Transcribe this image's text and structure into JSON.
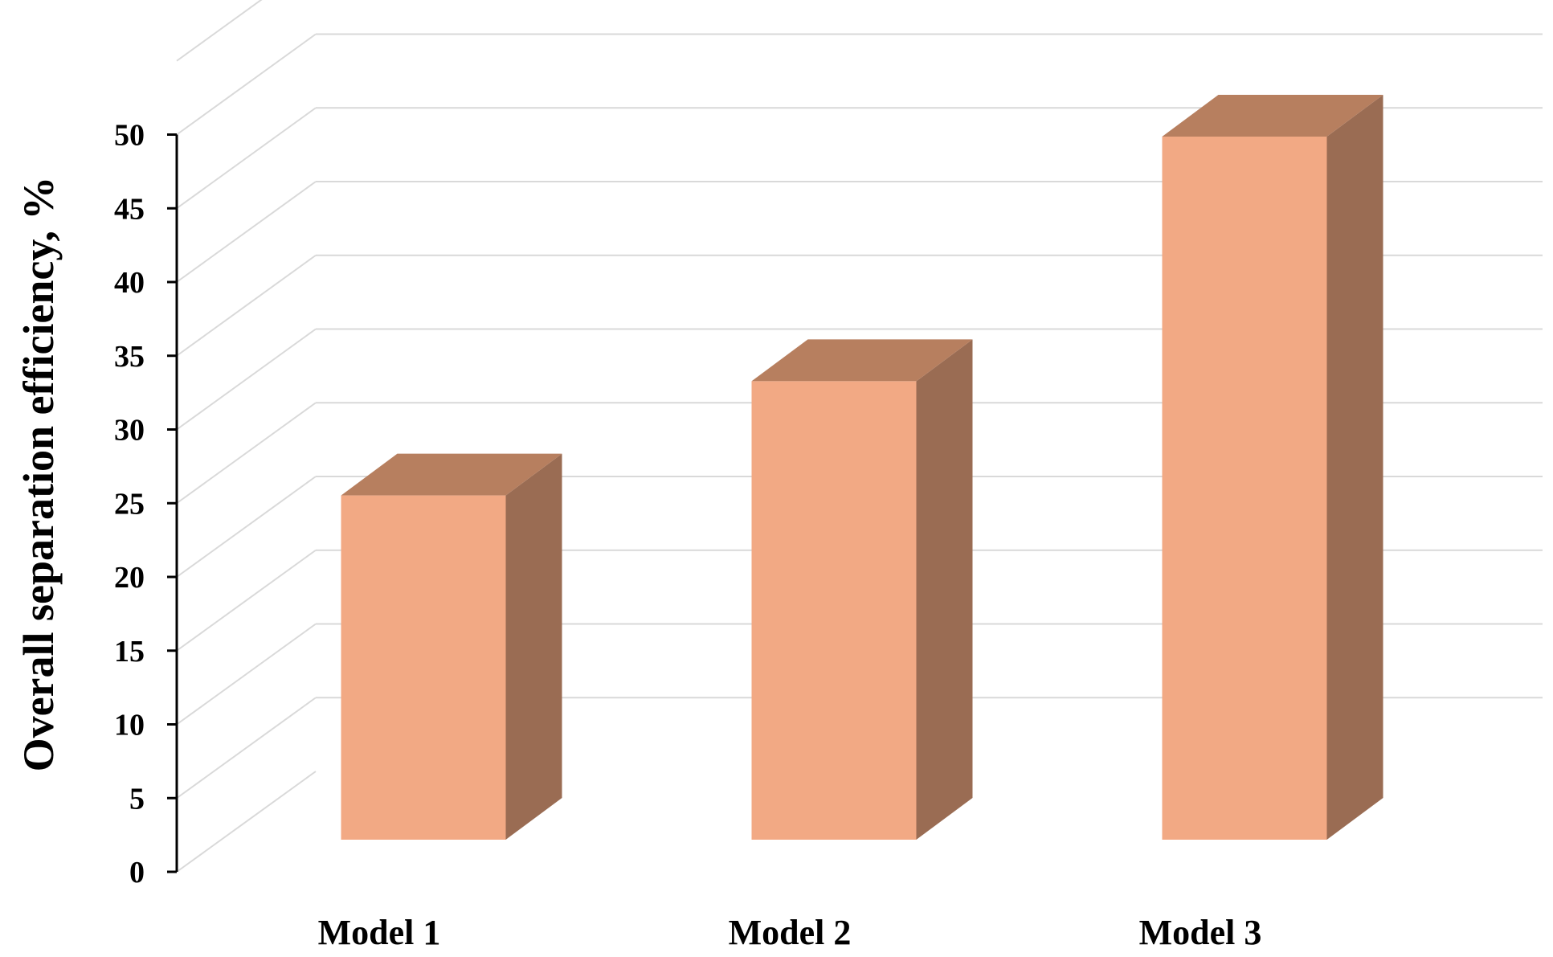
{
  "chart_data": {
    "type": "bar",
    "style": "3d-column",
    "categories": [
      "Model 1",
      "Model 2",
      "Model 3"
    ],
    "values": [
      23.5,
      31.3,
      48.0
    ],
    "title": "",
    "xlabel": "",
    "ylabel": "Overall separation efficiency, %",
    "ylim": [
      0,
      55
    ],
    "yticks": [
      0,
      5,
      10,
      15,
      20,
      25,
      30,
      35,
      40,
      45,
      50
    ],
    "ytick_labels": [
      "0",
      "5",
      "10",
      "15",
      "20",
      "25",
      "30",
      "35",
      "40",
      "45",
      "50"
    ],
    "grid": true,
    "legend": "none",
    "colors": {
      "bar_front": "#F2A984",
      "bar_top": "#B77F5F",
      "bar_side": "#9A6C53",
      "grid": "#D9D9D9",
      "axis": "#000000"
    }
  }
}
